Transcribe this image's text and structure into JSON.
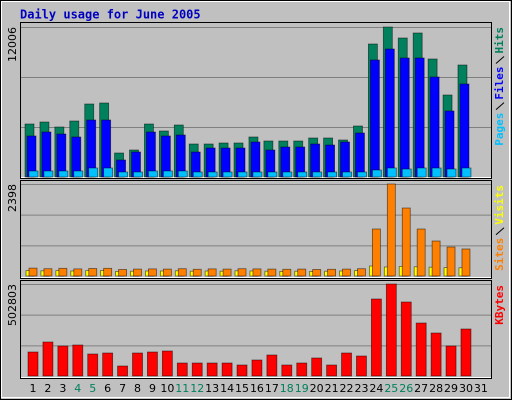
{
  "title": "Daily usage for June 2005",
  "chart_data": [
    {
      "type": "bar",
      "ylim": [
        0,
        12006
      ],
      "yticks": [
        12006
      ],
      "series": [
        {
          "name": "Hits",
          "color": "#00805c",
          "values": [
            4242,
            4402,
            4002,
            4482,
            5843,
            5923,
            1921,
            2161,
            4242,
            3682,
            4162,
            2641,
            2641,
            2721,
            2721,
            3202,
            2881,
            2881,
            2881,
            3122,
            3122,
            2962,
            4082,
            10645,
            12006,
            11125,
            11526,
            9445,
            6563,
            8964,
            null
          ]
        },
        {
          "name": "Files",
          "color": "#0000ff",
          "values": [
            3282,
            3602,
            3442,
            3202,
            4562,
            4562,
            1361,
            2001,
            3602,
            3282,
            3362,
            2001,
            2321,
            2321,
            2321,
            2801,
            2161,
            2401,
            2401,
            2641,
            2561,
            2801,
            3522,
            9365,
            10245,
            9525,
            9525,
            8004,
            5283,
            7444,
            null
          ]
        },
        {
          "name": "Pages",
          "color": "#00c0ff",
          "values": [
            480,
            480,
            480,
            480,
            720,
            720,
            400,
            400,
            480,
            480,
            480,
            400,
            400,
            400,
            400,
            400,
            400,
            400,
            400,
            400,
            400,
            400,
            400,
            560,
            720,
            640,
            720,
            720,
            640,
            720,
            null
          ]
        }
      ]
    },
    {
      "type": "bar",
      "ylim": [
        0,
        2398
      ],
      "yticks": [
        2398
      ],
      "series": [
        {
          "name": "Visits",
          "color": "#ffff00",
          "values": [
            140,
            135,
            140,
            130,
            140,
            145,
            120,
            125,
            130,
            130,
            135,
            125,
            130,
            125,
            135,
            130,
            125,
            120,
            125,
            120,
            125,
            130,
            140,
            260,
            235,
            250,
            240,
            230,
            220,
            215,
            null
          ]
        },
        {
          "name": "Sites",
          "color": "#ff8000",
          "values": [
            205,
            190,
            200,
            185,
            195,
            200,
            170,
            180,
            185,
            180,
            190,
            175,
            185,
            180,
            190,
            185,
            180,
            175,
            180,
            170,
            175,
            180,
            190,
            1225,
            2398,
            1772,
            1225,
            912,
            756,
            704,
            null
          ]
        }
      ]
    },
    {
      "type": "bar",
      "ylim": [
        0,
        502803
      ],
      "yticks": [
        502803
      ],
      "categories": [
        "1",
        "2",
        "3",
        "4",
        "5",
        "6",
        "7",
        "8",
        "9",
        "10",
        "11",
        "12",
        "13",
        "14",
        "15",
        "16",
        "17",
        "18",
        "19",
        "20",
        "21",
        "22",
        "23",
        "24",
        "25",
        "26",
        "27",
        "28",
        "29",
        "30",
        "31"
      ],
      "category_colors": [
        "#000000",
        "#000000",
        "#000000",
        "#00805c",
        "#00805c",
        "#000000",
        "#000000",
        "#000000",
        "#000000",
        "#000000",
        "#00805c",
        "#00805c",
        "#000000",
        "#000000",
        "#000000",
        "#000000",
        "#000000",
        "#00805c",
        "#00805c",
        "#000000",
        "#000000",
        "#000000",
        "#000000",
        "#000000",
        "#00805c",
        "#00805c",
        "#000000",
        "#000000",
        "#000000",
        "#000000",
        "#000000"
      ],
      "series": [
        {
          "name": "KBytes",
          "color": "#ff0000",
          "values": [
            131166,
            185818,
            163957,
            169422,
            120235,
            125700,
            54652,
            125700,
            131166,
            136631,
            71048,
            71048,
            71048,
            71048,
            60117,
            87444,
            114770,
            60117,
            71048,
            98374,
            60117,
            125700,
            109305,
            420824,
            502803,
            404429,
            289658,
            235005,
            163957,
            256866,
            null
          ]
        }
      ]
    }
  ]
}
